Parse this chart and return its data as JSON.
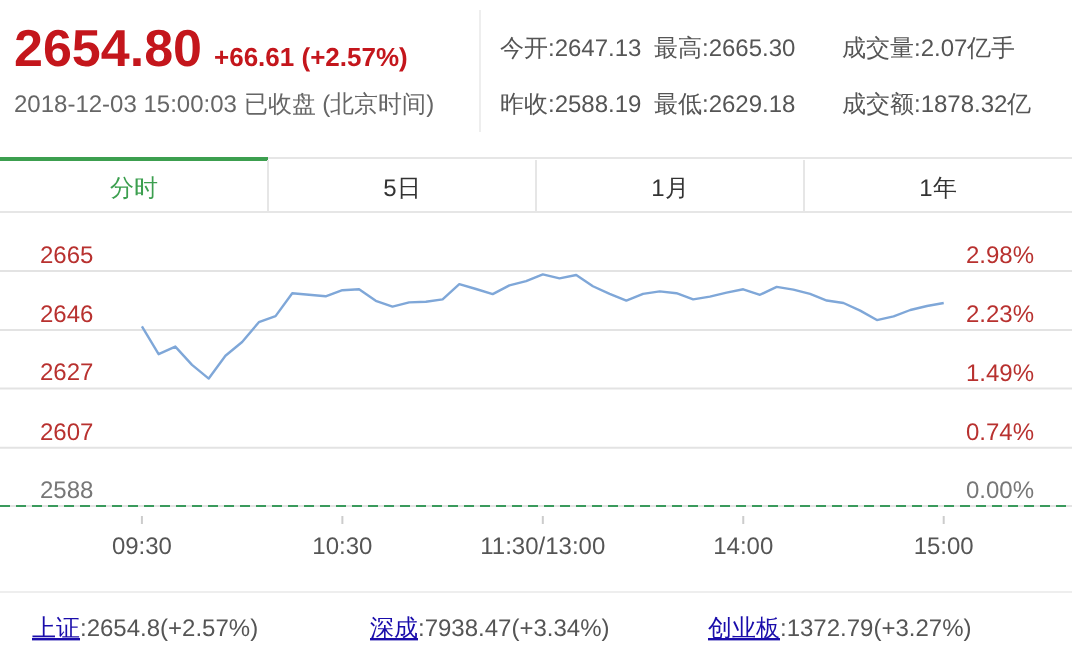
{
  "chart_data": {
    "type": "line",
    "title": "2654.80",
    "subtitle": "+66.61 (+2.57%)",
    "categories": [
      "09:30",
      null,
      null,
      null,
      null,
      null,
      null,
      null,
      null,
      null,
      null,
      null,
      "10:30",
      null,
      null,
      null,
      null,
      null,
      null,
      null,
      null,
      null,
      null,
      null,
      "11:30/13:00",
      null,
      null,
      null,
      null,
      null,
      null,
      null,
      null,
      null,
      null,
      null,
      "14:00",
      null,
      null,
      null,
      null,
      null,
      null,
      null,
      null,
      null,
      null,
      null,
      "15:00"
    ],
    "series": [
      {
        "color": "#7fa7d8",
        "values": [
          2647.1,
          2638,
          2640.5,
          2634.5,
          2630,
          2637.5,
          2642,
          2648.5,
          2650.5,
          2658,
          2657.5,
          2657,
          2659,
          2659.3,
          2655.5,
          2653.6,
          2655,
          2655.2,
          2656,
          2661,
          2659.4,
          2657.7,
          2660.6,
          2662,
          2664.2,
          2662.9,
          2664,
          2660.3,
          2657.8,
          2655.6,
          2657.8,
          2658.6,
          2658,
          2656,
          2656.9,
          2658.2,
          2659.3,
          2657.5,
          2660.1,
          2659.2,
          2657.8,
          2655.6,
          2654.8,
          2652.3,
          2649.2,
          2650.4,
          2652.5,
          2653.8,
          2654.8
        ]
      }
    ],
    "ylim": [
      2588.19,
      2665.3
    ],
    "y2lim": [
      0,
      2.98
    ],
    "yticks": [
      {
        "value": 2588.19,
        "label": "2588"
      },
      {
        "value": 2607.34,
        "label": "2607"
      },
      {
        "value": 2626.75,
        "label": "2627"
      },
      {
        "value": 2645.9,
        "label": "2646"
      },
      {
        "value": 2665.3,
        "label": "2665"
      }
    ],
    "y2ticks": [
      {
        "value": 0,
        "label": "0.00%"
      },
      {
        "value": 0.74,
        "label": "0.74%"
      },
      {
        "value": 1.49,
        "label": "1.49%"
      },
      {
        "value": 2.23,
        "label": "2.23%"
      },
      {
        "value": 2.98,
        "label": "2.98%"
      }
    ],
    "grid": "y",
    "ref_lines": [
      {
        "axis": "y",
        "value": 2588.19,
        "color": "#3a9a5c",
        "line_style": "dashed"
      }
    ],
    "annotations": [
      "2018-12-03 15:00:03 已收盘 (北京时间)",
      "今开:2647.13",
      "最高:2665.30",
      "成交量:2.07亿手",
      "昨收:2588.19",
      "最低:2629.18",
      "成交额:1878.32亿",
      "分时",
      "5日",
      "1月",
      "1年",
      "上证:2654.8(+2.57%)",
      "深成:7938.47(+3.34%)",
      "创业板:1372.79(+3.27%)"
    ]
  }
}
